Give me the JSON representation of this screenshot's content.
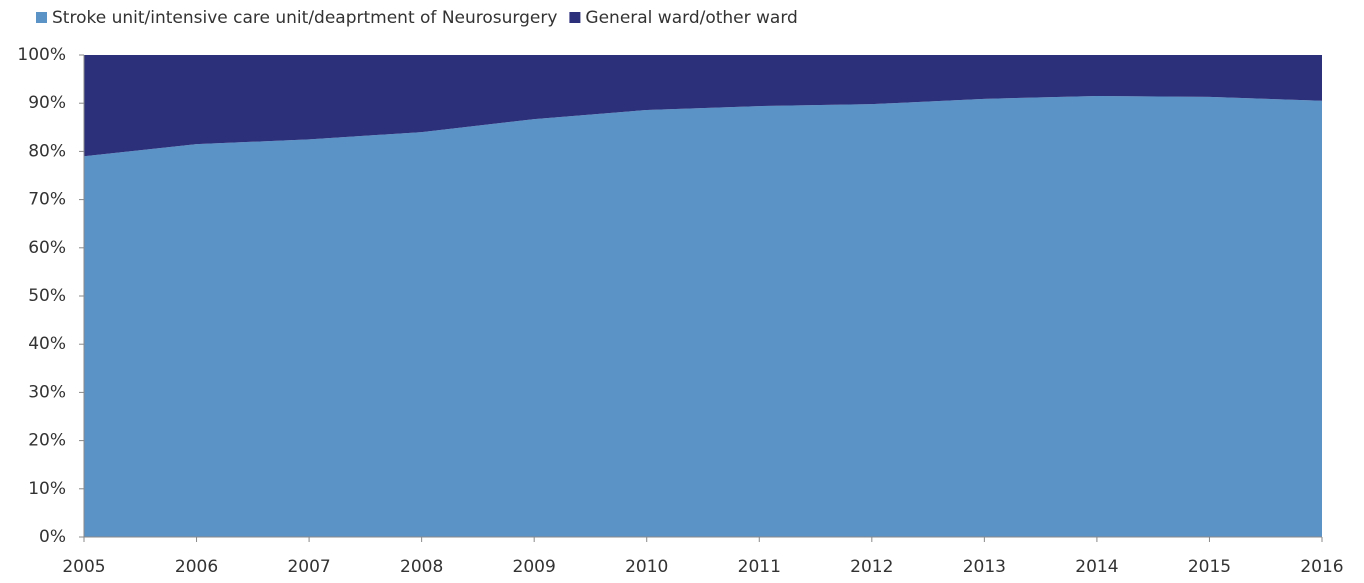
{
  "chart_data": {
    "type": "stacked_area",
    "x": [
      2005,
      2006,
      2007,
      2008,
      2009,
      2010,
      2011,
      2012,
      2013,
      2014,
      2015,
      2016
    ],
    "xlim": [
      2005,
      2016
    ],
    "series": [
      {
        "name": "Stroke unit/intensive care unit/deaprtment of Neurosurgery",
        "color": "#5b93c7",
        "values": [
          79,
          81.5,
          82.5,
          84,
          86.7,
          88.6,
          89.4,
          89.8,
          90.9,
          91.5,
          91.3,
          90.5
        ]
      },
      {
        "name": "General ward/other ward",
        "color": "#2c2f7a",
        "values": [
          21,
          18.5,
          17.5,
          16,
          13.3,
          11.4,
          10.6,
          10.2,
          9.1,
          8.5,
          8.7,
          9.5
        ]
      }
    ],
    "ylim": [
      0,
      100
    ],
    "yticks": [
      {
        "value": 0,
        "label": "0%"
      },
      {
        "value": 10,
        "label": "10%"
      },
      {
        "value": 20,
        "label": "20%"
      },
      {
        "value": 30,
        "label": "30%"
      },
      {
        "value": 40,
        "label": "40%"
      },
      {
        "value": 50,
        "label": "50%"
      },
      {
        "value": 60,
        "label": "60%"
      },
      {
        "value": 70,
        "label": "70%"
      },
      {
        "value": 80,
        "label": "80%"
      },
      {
        "value": 90,
        "label": "90%"
      },
      {
        "value": 100,
        "label": "100%"
      }
    ],
    "legend": "top-left"
  }
}
